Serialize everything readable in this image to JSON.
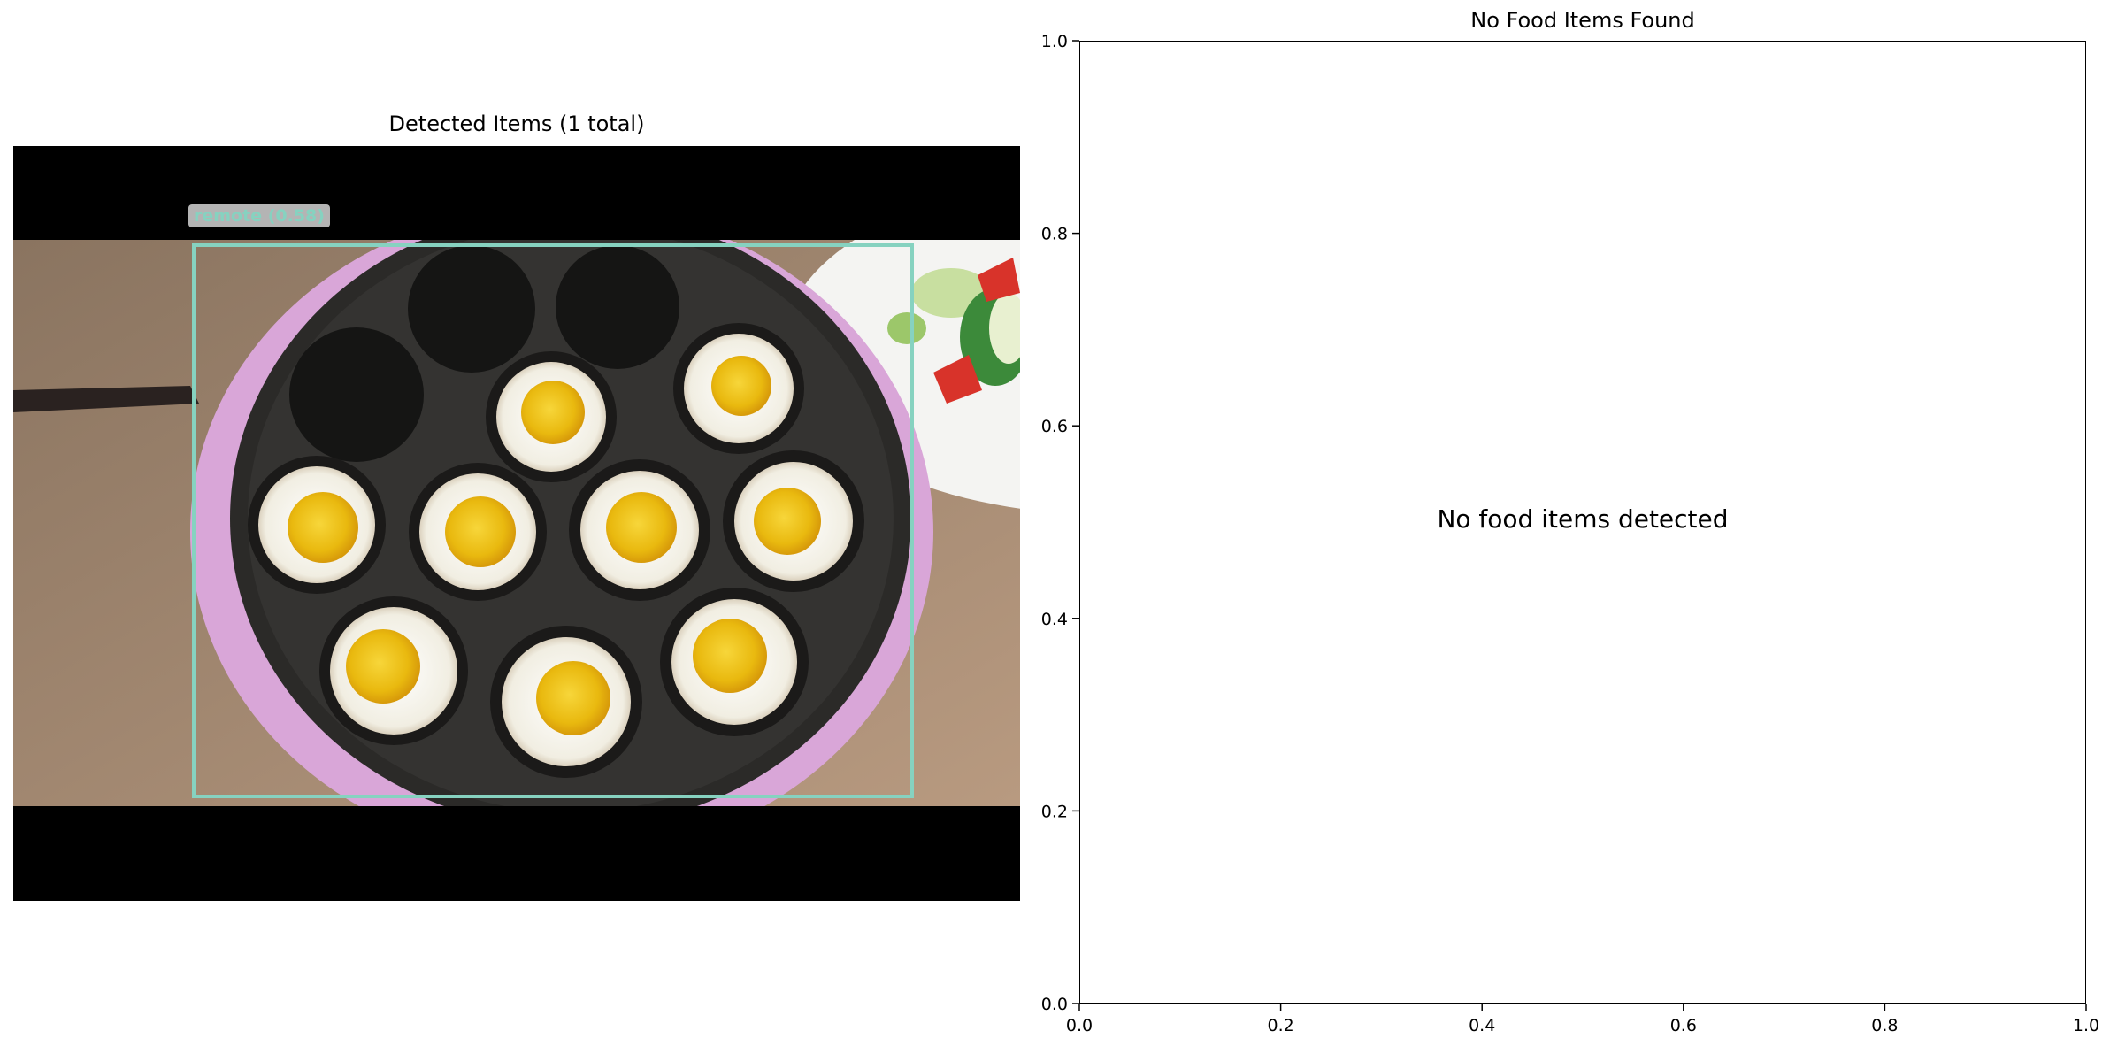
{
  "left_panel": {
    "title": "Detected Items (1 total)",
    "detections": [
      {
        "label": "remote (0.58)",
        "color": "#86d2c0"
      }
    ]
  },
  "right_panel": {
    "title": "No Food Items Found",
    "message": "No food items detected"
  },
  "chart_data": [
    {
      "type": "image",
      "title": "Detected Items (1 total)",
      "annotations": [
        "remote (0.58)"
      ]
    },
    {
      "type": "scatter",
      "title": "No Food Items Found",
      "series": [],
      "annotations": [
        "No food items detected"
      ],
      "xlim": [
        0,
        1
      ],
      "ylim": [
        0,
        1
      ],
      "x_ticks": [
        "0.0",
        "0.2",
        "0.4",
        "0.6",
        "0.8",
        "1.0"
      ],
      "y_ticks": [
        "0.0",
        "0.2",
        "0.4",
        "0.6",
        "0.8",
        "1.0"
      ],
      "xlabel": "",
      "ylabel": "",
      "grid": false
    }
  ]
}
